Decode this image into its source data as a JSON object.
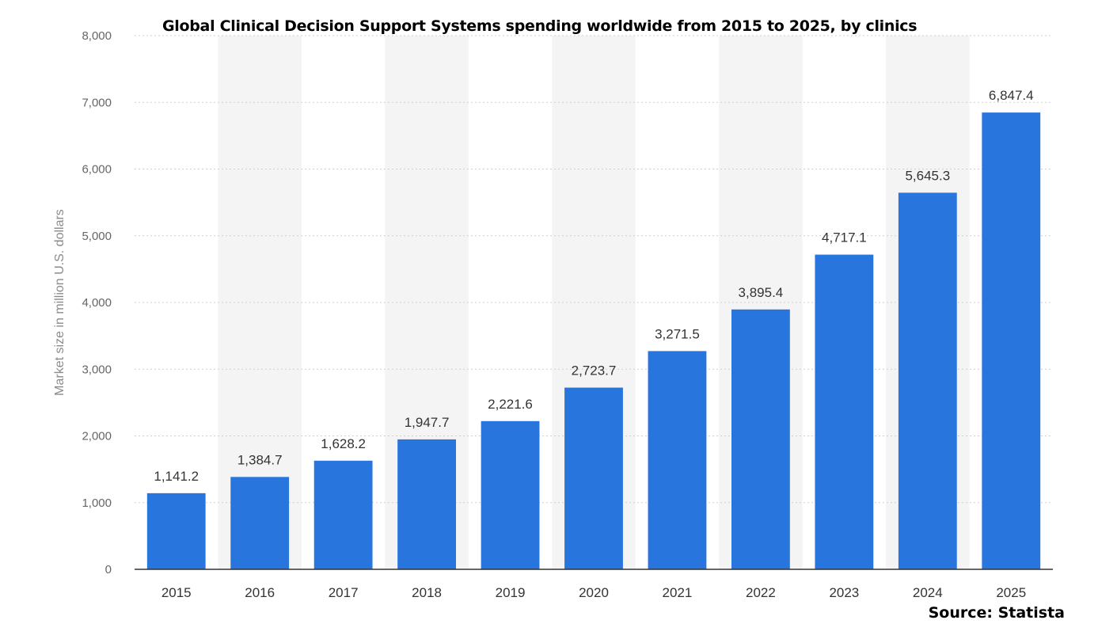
{
  "colors": {
    "bar": "#2876dd",
    "band": "#f4f4f4",
    "grid": "#cfcfcf",
    "axis_text": "#666666",
    "value_text": "#333333"
  },
  "source_text": "Source: Statista",
  "chart_data": {
    "type": "bar",
    "title": "Global Clinical Decision Support Systems spending worldwide from 2015 to 2025, by clinics",
    "xlabel": "",
    "ylabel": "Market size in million U.S. dollars",
    "categories": [
      "2015",
      "2016",
      "2017",
      "2018",
      "2019",
      "2020",
      "2021",
      "2022",
      "2023",
      "2024",
      "2025"
    ],
    "values": [
      1141.2,
      1384.7,
      1628.2,
      1947.7,
      2221.6,
      2723.7,
      3271.5,
      3895.4,
      4717.1,
      5645.3,
      6847.4
    ],
    "value_labels": [
      "1,141.2",
      "1,384.7",
      "1,628.2",
      "1,947.7",
      "2,221.6",
      "2,723.7",
      "3,271.5",
      "3,895.4",
      "4,717.1",
      "5,645.3",
      "6,847.4"
    ],
    "ylim": [
      0,
      8000
    ],
    "yticks": [
      0,
      1000,
      2000,
      3000,
      4000,
      5000,
      6000,
      7000,
      8000
    ],
    "ytick_labels": [
      "0",
      "1,000",
      "2,000",
      "3,000",
      "4,000",
      "5,000",
      "6,000",
      "7,000",
      "8,000"
    ],
    "grid": true,
    "legend": "none"
  }
}
